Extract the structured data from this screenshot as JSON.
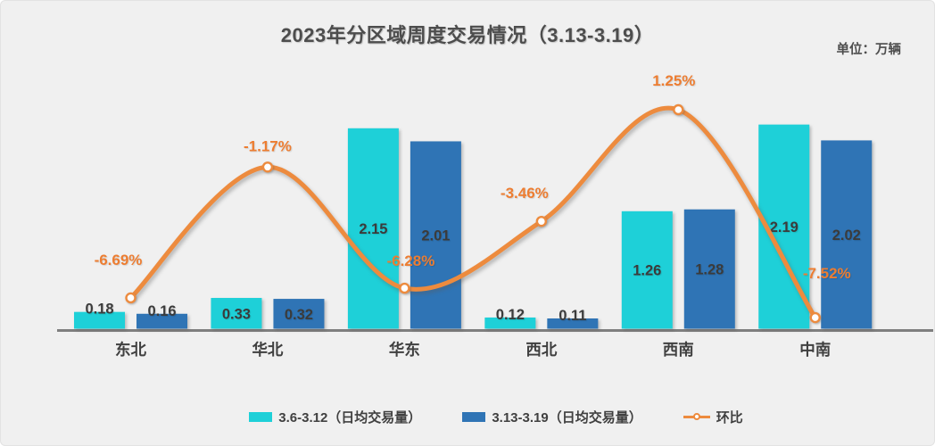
{
  "header": {
    "title": "2023年分区域周度交易情况（3.13-3.19）",
    "unit_label": "单位：万辆"
  },
  "chart_data": {
    "type": "bar",
    "subtype": "bar-line-combo",
    "title": "2023年分区域周度交易情况（3.13-3.19）",
    "unit_label": "单位：万辆",
    "categories": [
      "东北",
      "华北",
      "华东",
      "西北",
      "西南",
      "中南"
    ],
    "series": [
      {
        "name": "3.6-3.12（日均交易量）",
        "type": "bar",
        "color": "#1ED0D8",
        "values": [
          0.18,
          0.33,
          2.15,
          0.12,
          1.26,
          2.19
        ],
        "value_labels": [
          "0.18",
          "0.33",
          "2.15",
          "0.12",
          "1.26",
          "2.19"
        ]
      },
      {
        "name": "3.13-3.19（日均交易量）",
        "type": "bar",
        "color": "#2F74B5",
        "values": [
          0.16,
          0.32,
          2.01,
          0.11,
          1.28,
          2.02
        ],
        "value_labels": [
          "0.16",
          "0.32",
          "2.01",
          "0.11",
          "1.28",
          "2.02"
        ]
      },
      {
        "name": "环比",
        "type": "line",
        "color": "#ED8B3E",
        "label_color": "#ED7D31",
        "marker": "circle-white-fill",
        "values": [
          -6.69,
          -1.17,
          -6.28,
          -3.46,
          1.25,
          -7.52
        ],
        "value_labels": [
          "-6.69%",
          "-1.17%",
          "-6.28%",
          "-3.46%",
          "1.25%",
          "-7.52%"
        ]
      }
    ],
    "xlabel": "",
    "ylabel": "",
    "ylim": [
      0,
      2.3
    ],
    "y2lim": [
      -9,
      2
    ],
    "grid": false,
    "legend_position": "bottom",
    "axis_color": "#7f7f7f",
    "background_color": "#f0f0f0"
  }
}
